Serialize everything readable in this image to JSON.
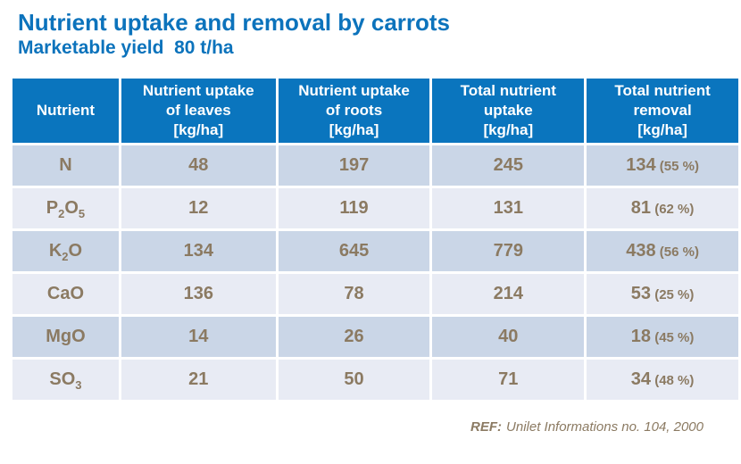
{
  "header": {
    "title": "Nutrient uptake and removal by carrots",
    "subtitle": "Marketable yield  80 t/ha"
  },
  "colors": {
    "title_blue": "#0c73bc",
    "header_bg": "#0a75be",
    "header_text": "#ffffff",
    "row_dark_bg": "#cad6e7",
    "row_light_bg": "#e8ebf4",
    "cell_text": "#8b7a62",
    "page_bg": "#ffffff"
  },
  "table": {
    "columns": [
      "Nutrient",
      "Nutrient uptake\nof leaves\n[kg/ha]",
      "Nutrient uptake\nof roots\n[kg/ha]",
      "Total nutrient\nuptake\n[kg/ha]",
      "Total nutrient\nremoval\n[kg/ha]"
    ],
    "rows": [
      {
        "nutrient": [
          [
            "N",
            false
          ]
        ],
        "leaves": "48",
        "roots": "197",
        "uptake": "245",
        "removal": "134",
        "removal_pct": "(55 %)"
      },
      {
        "nutrient": [
          [
            "P",
            false
          ],
          [
            "2",
            true
          ],
          [
            "O",
            false
          ],
          [
            "5",
            true
          ]
        ],
        "leaves": "12",
        "roots": "119",
        "uptake": "131",
        "removal": "81",
        "removal_pct": "(62 %)"
      },
      {
        "nutrient": [
          [
            "K",
            false
          ],
          [
            "2",
            true
          ],
          [
            "O",
            false
          ]
        ],
        "leaves": "134",
        "roots": "645",
        "uptake": "779",
        "removal": "438",
        "removal_pct": "(56 %)"
      },
      {
        "nutrient": [
          [
            "CaO",
            false
          ]
        ],
        "leaves": "136",
        "roots": "78",
        "uptake": "214",
        "removal": "53",
        "removal_pct": "(25 %)"
      },
      {
        "nutrient": [
          [
            "MgO",
            false
          ]
        ],
        "leaves": "14",
        "roots": "26",
        "uptake": "40",
        "removal": "18",
        "removal_pct": "(45 %)"
      },
      {
        "nutrient": [
          [
            "SO",
            false
          ],
          [
            "3",
            true
          ]
        ],
        "leaves": "21",
        "roots": "50",
        "uptake": "71",
        "removal": "34",
        "removal_pct": "(48 %)"
      }
    ]
  },
  "footer": {
    "ref_label": "REF:",
    "ref_text": "Unilet Informations no. 104, 2000"
  }
}
